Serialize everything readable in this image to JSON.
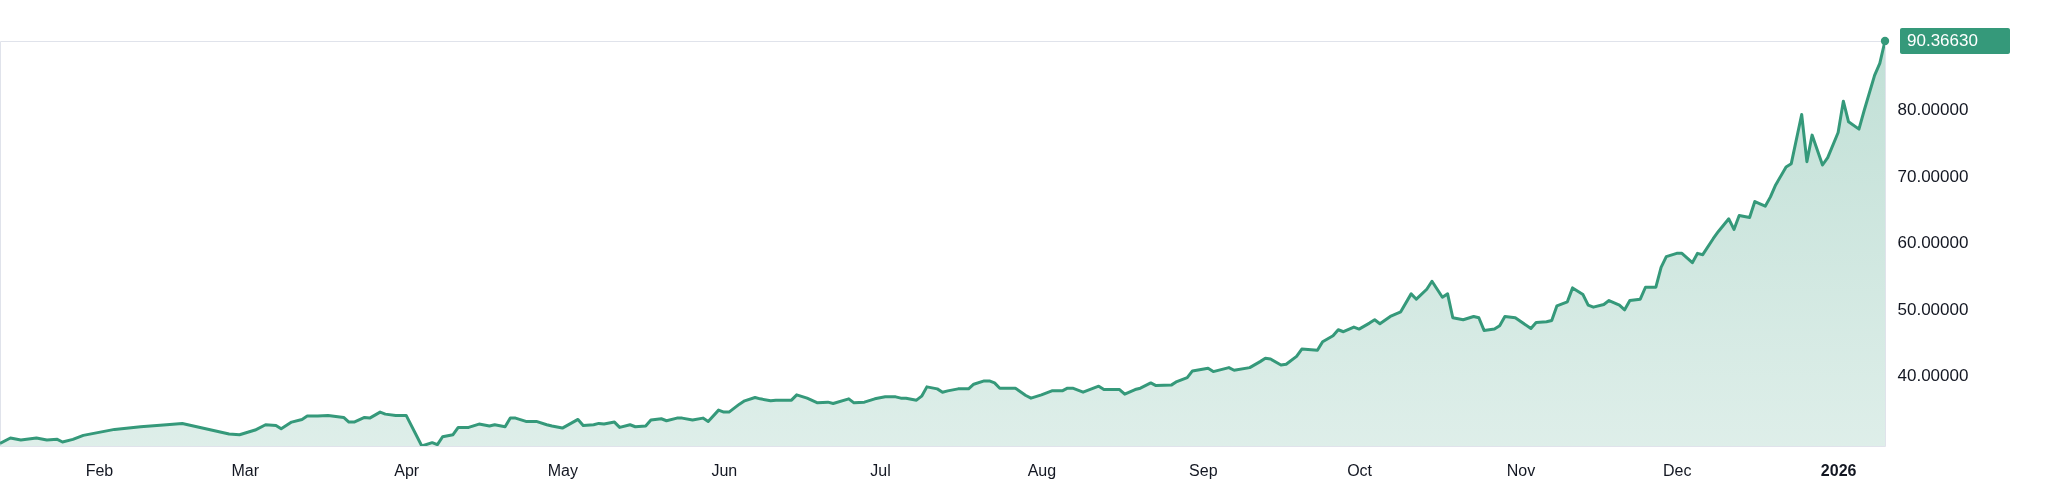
{
  "chart_data": {
    "type": "area",
    "xlim": [
      "2025-01-13",
      "2026-01-10"
    ],
    "ylim": [
      29.4,
      90.3663
    ],
    "xticks": [
      {
        "value": "2025-02-01",
        "label": "Feb"
      },
      {
        "value": "2025-03-01",
        "label": "Mar"
      },
      {
        "value": "2025-04-01",
        "label": "Apr"
      },
      {
        "value": "2025-05-01",
        "label": "May"
      },
      {
        "value": "2025-06-01",
        "label": "Jun"
      },
      {
        "value": "2025-07-01",
        "label": "Jul"
      },
      {
        "value": "2025-08-01",
        "label": "Aug"
      },
      {
        "value": "2025-09-01",
        "label": "Sep"
      },
      {
        "value": "2025-10-01",
        "label": "Oct"
      },
      {
        "value": "2025-11-01",
        "label": "Nov"
      },
      {
        "value": "2025-12-01",
        "label": "Dec"
      },
      {
        "value": "2026-01-01",
        "label": "2026"
      }
    ],
    "yticks": [
      {
        "value": 40,
        "label": "40.00000"
      },
      {
        "value": 50,
        "label": "50.00000"
      },
      {
        "value": 60,
        "label": "60.00000"
      },
      {
        "value": 70,
        "label": "70.00000"
      },
      {
        "value": 80,
        "label": "80.00000"
      }
    ],
    "grid": false,
    "annotations": [
      {
        "text": "90.36630",
        "x": "2026-01-10",
        "y": 90.3663
      }
    ],
    "series": [
      {
        "color": "#35997a",
        "x": [
          "2025-01-13",
          "2025-01-15",
          "2025-01-17",
          "2025-01-20",
          "2025-01-22",
          "2025-01-24",
          "2025-01-25",
          "2025-01-27",
          "2025-01-29",
          "2025-01-31",
          "2025-02-04",
          "2025-02-09",
          "2025-02-14",
          "2025-02-17",
          "2025-02-26",
          "2025-02-28",
          "2025-03-03",
          "2025-03-05",
          "2025-03-07",
          "2025-03-08",
          "2025-03-10",
          "2025-03-12",
          "2025-03-13",
          "2025-03-15",
          "2025-03-17",
          "2025-03-20",
          "2025-03-21",
          "2025-03-22",
          "2025-03-24",
          "2025-03-25",
          "2025-03-27",
          "2025-03-28",
          "2025-03-30",
          "2025-04-01",
          "2025-04-04",
          "2025-04-06",
          "2025-04-07",
          "2025-04-08",
          "2025-04-10",
          "2025-04-11",
          "2025-04-13",
          "2025-04-15",
          "2025-04-17",
          "2025-04-18",
          "2025-04-20",
          "2025-04-21",
          "2025-04-22",
          "2025-04-24",
          "2025-04-26",
          "2025-04-28",
          "2025-04-29",
          "2025-05-01",
          "2025-05-04",
          "2025-05-05",
          "2025-05-07",
          "2025-05-08",
          "2025-05-09",
          "2025-05-11",
          "2025-05-12",
          "2025-05-14",
          "2025-05-15",
          "2025-05-17",
          "2025-05-18",
          "2025-05-20",
          "2025-05-21",
          "2025-05-23",
          "2025-05-24",
          "2025-05-26",
          "2025-05-28",
          "2025-05-29",
          "2025-05-31",
          "2025-06-01",
          "2025-06-02",
          "2025-06-04",
          "2025-06-05",
          "2025-06-07",
          "2025-06-08",
          "2025-06-10",
          "2025-06-11",
          "2025-06-14",
          "2025-06-15",
          "2025-06-17",
          "2025-06-19",
          "2025-06-21",
          "2025-06-22",
          "2025-06-25",
          "2025-06-26",
          "2025-06-28",
          "2025-06-30",
          "2025-07-02",
          "2025-07-04",
          "2025-07-05",
          "2025-07-06",
          "2025-07-08",
          "2025-07-09",
          "2025-07-10",
          "2025-07-12",
          "2025-07-13",
          "2025-07-14",
          "2025-07-16",
          "2025-07-18",
          "2025-07-19",
          "2025-07-21",
          "2025-07-22",
          "2025-07-23",
          "2025-07-24",
          "2025-07-27",
          "2025-07-29",
          "2025-07-30",
          "2025-08-01",
          "2025-08-03",
          "2025-08-05",
          "2025-08-06",
          "2025-08-07",
          "2025-08-09",
          "2025-08-10",
          "2025-08-12",
          "2025-08-13",
          "2025-08-16",
          "2025-08-17",
          "2025-08-19",
          "2025-08-20",
          "2025-08-22",
          "2025-08-23",
          "2025-08-26",
          "2025-08-27",
          "2025-08-29",
          "2025-08-30",
          "2025-09-02",
          "2025-09-03",
          "2025-09-06",
          "2025-09-07",
          "2025-09-10",
          "2025-09-12",
          "2025-09-13",
          "2025-09-14",
          "2025-09-16",
          "2025-09-17",
          "2025-09-19",
          "2025-09-20",
          "2025-09-23",
          "2025-09-24",
          "2025-09-26",
          "2025-09-27",
          "2025-09-28",
          "2025-09-30",
          "2025-10-01",
          "2025-10-03",
          "2025-10-04",
          "2025-10-05",
          "2025-10-07",
          "2025-10-09",
          "2025-10-11",
          "2025-10-12",
          "2025-10-14",
          "2025-10-15",
          "2025-10-17",
          "2025-10-18",
          "2025-10-19",
          "2025-10-21",
          "2025-10-23",
          "2025-10-24",
          "2025-10-25",
          "2025-10-27",
          "2025-10-28",
          "2025-10-29",
          "2025-10-31",
          "2025-11-03",
          "2025-11-04",
          "2025-11-06",
          "2025-11-07",
          "2025-11-08",
          "2025-11-10",
          "2025-11-11",
          "2025-11-13",
          "2025-11-14",
          "2025-11-15",
          "2025-11-17",
          "2025-11-18",
          "2025-11-20",
          "2025-11-21",
          "2025-11-22",
          "2025-11-24",
          "2025-11-25",
          "2025-11-27",
          "2025-11-28",
          "2025-11-29",
          "2025-12-01",
          "2025-12-02",
          "2025-12-04",
          "2025-12-05",
          "2025-12-06",
          "2025-12-08",
          "2025-12-09",
          "2025-12-11",
          "2025-12-12",
          "2025-12-13",
          "2025-12-15",
          "2025-12-16",
          "2025-12-18",
          "2025-12-19",
          "2025-12-20",
          "2025-12-22",
          "2025-12-23",
          "2025-12-25",
          "2025-12-26",
          "2025-12-27",
          "2025-12-29",
          "2025-12-30",
          "2026-01-01",
          "2026-01-02",
          "2026-01-03",
          "2026-01-05",
          "2026-01-06",
          "2026-01-08",
          "2026-01-09",
          "2026-01-10"
        ],
        "values": [
          29.8,
          30.6,
          30.3,
          30.6,
          30.3,
          30.4,
          30.0,
          30.4,
          31.0,
          31.3,
          31.9,
          32.3,
          32.6,
          32.8,
          31.2,
          31.1,
          31.8,
          32.6,
          32.5,
          32.0,
          33.0,
          33.4,
          33.9,
          33.9,
          34.0,
          33.7,
          33.0,
          33.0,
          33.7,
          33.6,
          34.5,
          34.2,
          34.0,
          34.0,
          29.4,
          29.9,
          29.6,
          30.8,
          31.1,
          32.2,
          32.2,
          32.7,
          32.4,
          32.6,
          32.3,
          33.6,
          33.6,
          33.1,
          33.1,
          32.6,
          32.4,
          32.1,
          33.4,
          32.5,
          32.6,
          32.8,
          32.7,
          33.0,
          32.2,
          32.6,
          32.3,
          32.4,
          33.3,
          33.5,
          33.2,
          33.6,
          33.6,
          33.3,
          33.6,
          33.1,
          34.8,
          34.5,
          34.5,
          35.7,
          36.2,
          36.7,
          36.5,
          36.2,
          36.3,
          36.3,
          37.1,
          36.6,
          35.9,
          36.0,
          35.8,
          36.5,
          35.9,
          36.0,
          36.5,
          36.8,
          36.8,
          36.6,
          36.6,
          36.3,
          36.9,
          38.3,
          38.0,
          37.5,
          37.7,
          38.0,
          38.0,
          38.7,
          39.2,
          39.2,
          38.9,
          38.1,
          38.1,
          37.0,
          36.6,
          37.1,
          37.7,
          37.7,
          38.1,
          38.1,
          37.5,
          37.8,
          38.4,
          37.9,
          37.9,
          37.2,
          37.9,
          38.1,
          38.9,
          38.5,
          38.6,
          39.1,
          39.7,
          40.7,
          41.1,
          40.6,
          41.2,
          40.8,
          41.2,
          42.1,
          42.6,
          42.5,
          41.6,
          41.7,
          42.9,
          44.0,
          43.8,
          45.1,
          46.0,
          46.9,
          46.6,
          47.3,
          47.0,
          47.9,
          48.4,
          47.8,
          48.9,
          49.6,
          52.3,
          51.5,
          53.0,
          54.2,
          51.8,
          52.3,
          48.7,
          48.4,
          48.9,
          48.7,
          46.8,
          47.0,
          47.5,
          48.9,
          48.7,
          47.1,
          48.0,
          48.1,
          48.3,
          50.5,
          51.1,
          53.2,
          52.2,
          50.6,
          50.3,
          50.7,
          51.3,
          50.6,
          49.9,
          51.3,
          51.5,
          53.3,
          53.3,
          56.3,
          57.9,
          58.4,
          58.4,
          57.0,
          58.4,
          58.2,
          60.6,
          61.7,
          63.6,
          62.0,
          64.1,
          63.8,
          66.2,
          65.5,
          66.9,
          68.7,
          71.4,
          71.9,
          79.3,
          72.2,
          76.2,
          71.7,
          72.8,
          76.6,
          81.3,
          78.2,
          77.1,
          79.9,
          85.2,
          87.0,
          90.3663
        ]
      }
    ]
  }
}
